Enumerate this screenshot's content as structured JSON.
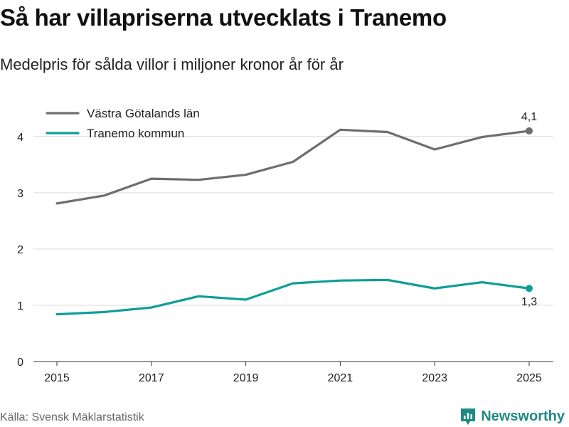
{
  "title": "Så har villapriserna utvecklats i Tranemo",
  "subtitle": "Medelpris för sålda villor i miljoner kronor år för år",
  "source": "Källa: Svensk Mäklarstatistik",
  "brand": {
    "name": "Newsworthy",
    "icon": "newsworthy-logo-icon",
    "color": "#1e8a84"
  },
  "chart_data": {
    "type": "line",
    "title": "Så har villapriserna utvecklats i Tranemo",
    "subtitle": "Medelpris för sålda villor i miljoner kronor år för år",
    "xlabel": "",
    "ylabel": "",
    "x": [
      2015,
      2016,
      2017,
      2018,
      2019,
      2020,
      2021,
      2022,
      2023,
      2024,
      2025
    ],
    "xticks": [
      "2015",
      "2017",
      "2019",
      "2021",
      "2023",
      "2025"
    ],
    "xticks_values": [
      2015,
      2017,
      2019,
      2021,
      2023,
      2025
    ],
    "yticks": [
      "0",
      "1",
      "2",
      "3",
      "4"
    ],
    "yticks_values": [
      0,
      1,
      2,
      3,
      4
    ],
    "xlim": [
      2015,
      2025
    ],
    "ylim": [
      0,
      4.2
    ],
    "grid": true,
    "legend_position": "top-left",
    "series": [
      {
        "name": "Västra Götalands län",
        "color": "#6e6e6e",
        "values": [
          2.81,
          2.95,
          3.25,
          3.23,
          3.32,
          3.55,
          4.12,
          4.08,
          3.77,
          3.99,
          4.1
        ],
        "end_label": "4,1"
      },
      {
        "name": "Tranemo kommun",
        "color": "#0f9e96",
        "values": [
          0.84,
          0.88,
          0.96,
          1.16,
          1.1,
          1.39,
          1.44,
          1.45,
          1.3,
          1.41,
          1.3
        ],
        "end_label": "1,3"
      }
    ]
  }
}
